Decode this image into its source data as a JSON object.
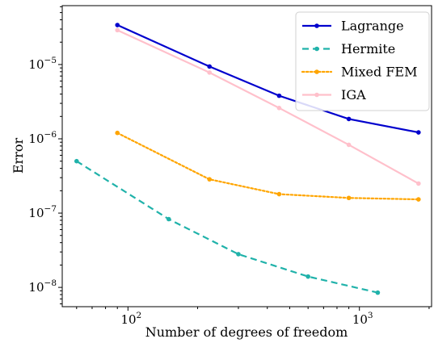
{
  "chart_data": {
    "type": "line",
    "title": "",
    "xlabel": "Number of degrees of freedom",
    "ylabel": "Error",
    "xscale": "log",
    "yscale": "log",
    "xlim": [
      52,
      2050
    ],
    "ylim": [
      5.5e-09,
      6.2e-05
    ],
    "grid": false,
    "legend_position": "top-right",
    "x_ticks": [
      {
        "value": 100,
        "base": "10",
        "exp": "2"
      },
      {
        "value": 1000,
        "base": "10",
        "exp": "3"
      }
    ],
    "y_ticks": [
      {
        "value": 1e-08,
        "base": "10",
        "exp": "−8"
      },
      {
        "value": 1e-07,
        "base": "10",
        "exp": "−7"
      },
      {
        "value": 1e-06,
        "base": "10",
        "exp": "−6"
      },
      {
        "value": 1e-05,
        "base": "10",
        "exp": "−5"
      }
    ],
    "series": [
      {
        "name": "Lagrange",
        "color": "#0000cd",
        "dash": "solid",
        "x": [
          90,
          225,
          450,
          900,
          1800
        ],
        "y": [
          3.4e-05,
          9.4e-06,
          3.8e-06,
          1.85e-06,
          1.22e-06
        ]
      },
      {
        "name": "Hermite",
        "color": "#20b2aa",
        "dash": "dashed",
        "x": [
          60,
          150,
          300,
          600,
          1200
        ],
        "y": [
          5e-07,
          8.3e-08,
          2.8e-08,
          1.4e-08,
          8.5e-09
        ]
      },
      {
        "name": "Mixed FEM",
        "color": "#ffa500",
        "dash": "dotted",
        "x": [
          90,
          225,
          450,
          900,
          1800
        ],
        "y": [
          1.2e-06,
          2.85e-07,
          1.8e-07,
          1.6e-07,
          1.53e-07
        ]
      },
      {
        "name": "IGA",
        "color": "#ffc0cb",
        "dash": "solid",
        "x": [
          90,
          225,
          450,
          900,
          1800
        ],
        "y": [
          2.9e-05,
          7.8e-06,
          2.6e-06,
          8.3e-07,
          2.5e-07
        ]
      }
    ]
  }
}
